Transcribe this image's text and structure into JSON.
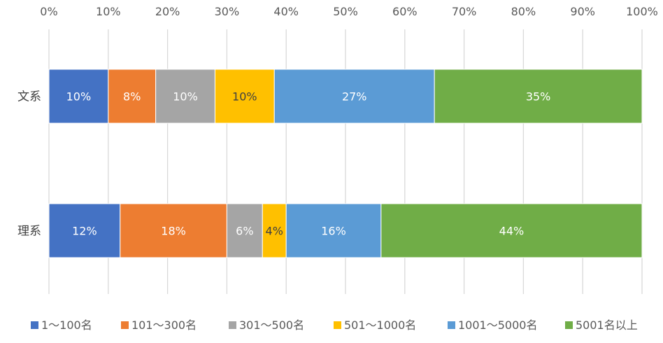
{
  "chart_data": {
    "type": "bar",
    "orientation": "horizontal",
    "stacked": "percent",
    "title": "",
    "xlabel": "",
    "ylabel": "",
    "xlim": [
      0,
      100
    ],
    "x_ticks": [
      "0%",
      "10%",
      "20%",
      "30%",
      "40%",
      "50%",
      "60%",
      "70%",
      "80%",
      "90%",
      "100%"
    ],
    "x_axis_position": "top",
    "grid": "vertical",
    "legend_position": "bottom",
    "categories": [
      "文系",
      "理系"
    ],
    "series": [
      {
        "name": "1〜100名",
        "values": [
          10,
          12
        ],
        "labels": [
          "10%",
          "12%"
        ],
        "color": "#4472C4",
        "label_color": "#ffffff"
      },
      {
        "name": "101〜300名",
        "values": [
          8,
          18
        ],
        "labels": [
          "8%",
          "18%"
        ],
        "color": "#ED7D31",
        "label_color": "#ffffff"
      },
      {
        "name": "301〜500名",
        "values": [
          10,
          6
        ],
        "labels": [
          "10%",
          "6%"
        ],
        "color": "#A5A5A5",
        "label_color": "#ffffff"
      },
      {
        "name": "501〜1000名",
        "values": [
          10,
          4
        ],
        "labels": [
          "10%",
          "4%"
        ],
        "color": "#FFC000",
        "label_color": "#404040"
      },
      {
        "name": "1001〜5000名",
        "values": [
          27,
          16
        ],
        "labels": [
          "27%",
          "16%"
        ],
        "color": "#5B9BD5",
        "label_color": "#ffffff"
      },
      {
        "name": "5001名以上",
        "values": [
          35,
          44
        ],
        "labels": [
          "35%",
          "44%"
        ],
        "color": "#70AD47",
        "label_color": "#ffffff"
      }
    ]
  }
}
